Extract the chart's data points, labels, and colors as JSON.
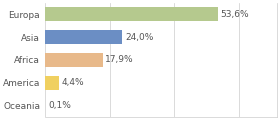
{
  "categories": [
    "Europa",
    "Asia",
    "Africa",
    "America",
    "Oceania"
  ],
  "values": [
    53.6,
    24.0,
    17.9,
    4.4,
    0.1
  ],
  "labels": [
    "53,6%",
    "24,0%",
    "17,9%",
    "4,4%",
    "0,1%"
  ],
  "bar_colors": [
    "#b5c98e",
    "#6b8ec4",
    "#e8b98a",
    "#f0d060",
    "#d0d0d0"
  ],
  "background_color": "#ffffff",
  "text_color": "#555555",
  "label_fontsize": 6.5,
  "category_fontsize": 6.5,
  "xlim": [
    0,
    72
  ],
  "bar_height": 0.6,
  "grid_color": "#cccccc"
}
